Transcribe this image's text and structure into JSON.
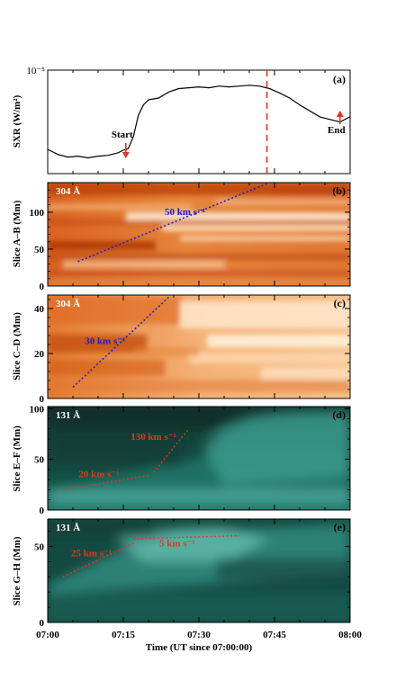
{
  "figure": {
    "x_axis": {
      "label": "Time (UT since 07:00:00)",
      "ticks": [
        "07:00",
        "07:15",
        "07:30",
        "07:45",
        "08:00"
      ]
    },
    "colors": {
      "euv304_dark": "#b83c08",
      "euv304_light": "#fff3de",
      "euv131_dark": "#0a2a24",
      "euv131_light": "#bff8f2",
      "annotation_red": "#e8341c",
      "annotation_blue": "#1a20c8",
      "frame": "#000000"
    }
  },
  "chart_data": [
    {
      "type": "line",
      "panel": "(a)",
      "ylabel": "SXR (W/m²)",
      "y_tick_label": "10⁻⁵",
      "x_unit": "minutes since 07:00",
      "x": [
        0,
        2,
        4,
        6,
        8,
        10,
        12,
        14,
        15,
        16,
        17,
        18,
        19,
        20,
        21,
        22,
        24,
        26,
        28,
        30,
        32,
        34,
        36,
        38,
        40,
        42,
        44,
        46,
        48,
        50,
        52,
        54,
        56,
        58,
        60
      ],
      "y_rel": [
        0.2,
        0.14,
        0.11,
        0.12,
        0.1,
        0.12,
        0.13,
        0.16,
        0.19,
        0.21,
        0.35,
        0.6,
        0.72,
        0.78,
        0.79,
        0.8,
        0.87,
        0.91,
        0.92,
        0.93,
        0.92,
        0.94,
        0.93,
        0.94,
        0.95,
        0.94,
        0.91,
        0.86,
        0.8,
        0.72,
        0.65,
        0.58,
        0.55,
        0.52,
        0.58
      ],
      "flare_time": 43.5,
      "annotations": [
        {
          "text": "Start",
          "x": 15.5
        },
        {
          "text": "End",
          "x": 58
        }
      ]
    },
    {
      "type": "heatmap",
      "panel": "(b)",
      "channel": "304 Å",
      "ylabel": "Slice A–B (Mm)",
      "ylim": [
        0,
        140
      ],
      "yticks": [
        0,
        50,
        100
      ],
      "fit": {
        "label": "50 km s⁻¹",
        "from": [
          6,
          33
        ],
        "to": [
          44,
          140
        ]
      }
    },
    {
      "type": "heatmap",
      "panel": "(c)",
      "channel": "304 Å",
      "ylabel": "Slice C–D (Mm)",
      "ylim": [
        0,
        46
      ],
      "yticks": [
        0,
        20,
        40
      ],
      "fit": {
        "label": "30 km s⁻¹",
        "from": [
          5,
          5
        ],
        "to": [
          24,
          45
        ]
      }
    },
    {
      "type": "heatmap",
      "panel": "(d)",
      "channel": "131 Å",
      "ylabel": "Slice E–F (Mm)",
      "ylim": [
        0,
        102
      ],
      "yticks": [
        0,
        50,
        100
      ],
      "fits": [
        {
          "label": "20 km s⁻¹",
          "from": [
            3,
            20
          ],
          "to": [
            20,
            34
          ]
        },
        {
          "label": "130 km s⁻¹",
          "from": [
            21,
            37
          ],
          "to": [
            28,
            80
          ]
        }
      ]
    },
    {
      "type": "heatmap",
      "panel": "(e)",
      "channel": "131 Å",
      "ylabel": "Slice G–H (Mm)",
      "ylim": [
        0,
        68
      ],
      "yticks": [
        0,
        50
      ],
      "fits": [
        {
          "label": "25 km s⁻¹",
          "from": [
            3,
            30
          ],
          "to": [
            17,
            52
          ]
        },
        {
          "label": "5 km s⁻¹",
          "from": [
            17,
            55
          ],
          "to": [
            38,
            57
          ]
        }
      ]
    }
  ]
}
